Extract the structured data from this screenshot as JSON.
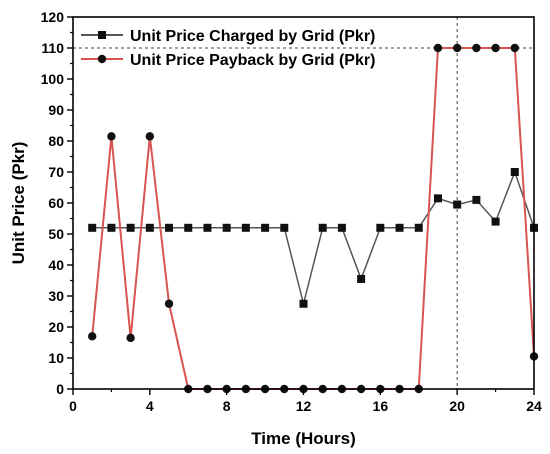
{
  "chart_data": {
    "type": "line",
    "xlabel": "Time (Hours)",
    "ylabel": "Unit Price (Pkr)",
    "xlim": [
      0,
      24
    ],
    "ylim": [
      0,
      120
    ],
    "xticks": [
      0,
      4,
      8,
      12,
      16,
      20,
      24
    ],
    "yticks": [
      0,
      10,
      20,
      30,
      40,
      50,
      60,
      70,
      80,
      90,
      100,
      110,
      120
    ],
    "grid": "dashed gridlines at x = 20 and y = 110",
    "legend_position": "top-left",
    "series": [
      {
        "name": "Unit Price Charged by Grid (Pkr)",
        "color": "#555555",
        "marker": "square",
        "x": [
          1,
          2,
          3,
          4,
          5,
          6,
          7,
          8,
          9,
          10,
          11,
          12,
          13,
          14,
          15,
          16,
          17,
          18,
          19,
          20,
          21,
          22,
          23,
          24
        ],
        "y": [
          52,
          52,
          52,
          52,
          52,
          52,
          52,
          52,
          52,
          52,
          52,
          27.5,
          52,
          52,
          35.5,
          52,
          52,
          52,
          61.5,
          59.5,
          61,
          54,
          70,
          52
        ]
      },
      {
        "name": "Unit Price Payback by Grid (Pkr)",
        "color": "#d9534f",
        "marker": "circle",
        "x": [
          1,
          2,
          3,
          4,
          5,
          6,
          7,
          8,
          9,
          10,
          11,
          12,
          13,
          14,
          15,
          16,
          17,
          18,
          19,
          20,
          21,
          22,
          23,
          24
        ],
        "y": [
          17,
          81.5,
          16.5,
          81.5,
          27.5,
          0,
          0,
          0,
          0,
          0,
          0,
          0,
          0,
          0,
          0,
          0,
          0,
          0,
          110,
          110,
          110,
          110,
          110,
          10.5
        ]
      }
    ]
  }
}
